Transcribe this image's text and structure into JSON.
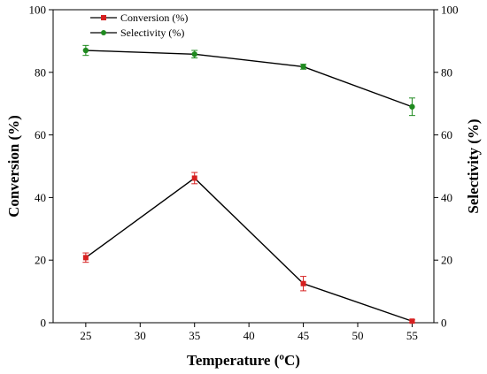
{
  "chart_data": {
    "type": "line",
    "x": [
      25,
      35,
      45,
      55
    ],
    "xlabel": "Temperature (ºC)",
    "ylabel_left": "Conversion (%)",
    "ylabel_right": "Selectivity (%)",
    "xlim": [
      22,
      57
    ],
    "xticks": [
      25,
      30,
      35,
      40,
      45,
      50,
      55
    ],
    "ylim": [
      0,
      100
    ],
    "yticks": [
      0,
      20,
      40,
      60,
      80,
      100
    ],
    "legend_position": "top-left",
    "grid": false,
    "series": [
      {
        "name": "Conversion (%)",
        "axis": "left",
        "marker": "square",
        "color": "#d62020",
        "values": [
          20.8,
          46.2,
          12.5,
          0.5
        ],
        "errors": [
          1.5,
          1.8,
          2.3,
          0.4
        ]
      },
      {
        "name": "Selectivity (%)",
        "axis": "right",
        "marker": "circle",
        "color": "#1f8a1f",
        "values": [
          87.0,
          85.8,
          81.8,
          69.0
        ],
        "errors": [
          1.6,
          1.2,
          0.8,
          2.8
        ]
      }
    ]
  }
}
